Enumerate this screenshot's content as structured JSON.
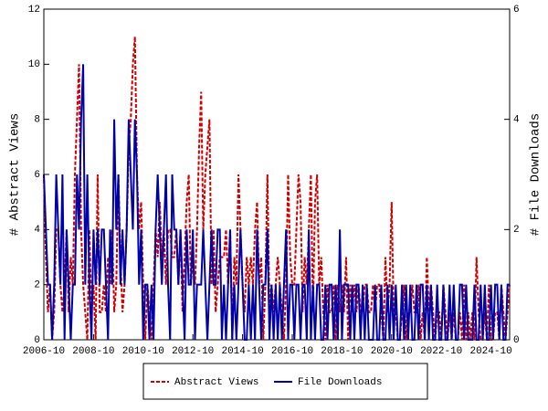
{
  "chart_data": {
    "type": "line",
    "ylabel": "# Abstract Views",
    "y2label": "# File Downloads",
    "x": [
      "2006-10",
      "2006-11",
      "2006-12",
      "2007-01",
      "2007-02",
      "2007-03",
      "2007-04",
      "2007-05",
      "2007-06",
      "2007-07",
      "2007-08",
      "2007-09",
      "2007-10",
      "2007-11",
      "2007-12",
      "2008-01",
      "2008-02",
      "2008-03",
      "2008-04",
      "2008-05",
      "2008-06",
      "2008-07",
      "2008-08",
      "2008-09",
      "2008-10",
      "2008-11",
      "2008-12",
      "2009-01",
      "2009-02",
      "2009-03",
      "2009-04",
      "2009-05",
      "2009-06",
      "2009-07",
      "2009-08",
      "2009-09",
      "2009-10",
      "2009-11",
      "2009-12",
      "2010-01",
      "2010-02",
      "2010-03",
      "2010-04",
      "2010-05",
      "2010-06",
      "2010-07",
      "2010-08",
      "2010-09",
      "2010-10",
      "2010-11",
      "2010-12",
      "2011-01",
      "2011-02",
      "2011-03",
      "2011-04",
      "2011-05",
      "2011-06",
      "2011-07",
      "2011-08",
      "2011-09",
      "2011-10",
      "2011-11",
      "2011-12",
      "2012-01",
      "2012-02",
      "2012-03",
      "2012-04",
      "2012-05",
      "2012-06",
      "2012-07",
      "2012-08",
      "2012-09",
      "2012-10",
      "2012-11",
      "2012-12",
      "2013-01",
      "2013-02",
      "2013-03",
      "2013-04",
      "2013-05",
      "2013-06",
      "2013-07",
      "2013-08",
      "2013-09",
      "2013-10",
      "2013-11",
      "2013-12",
      "2014-01",
      "2014-02",
      "2014-03",
      "2014-04",
      "2014-05",
      "2014-06",
      "2014-07",
      "2014-08",
      "2014-09",
      "2014-10",
      "2014-11",
      "2014-12",
      "2015-01",
      "2015-02",
      "2015-03",
      "2015-04",
      "2015-05",
      "2015-06",
      "2015-07",
      "2015-08",
      "2015-09",
      "2015-10",
      "2015-11",
      "2015-12",
      "2016-01",
      "2016-02",
      "2016-03",
      "2016-04",
      "2016-05",
      "2016-06",
      "2016-07",
      "2016-08",
      "2016-09",
      "2016-10",
      "2016-11",
      "2016-12",
      "2017-01",
      "2017-02",
      "2017-03",
      "2017-04",
      "2017-05",
      "2017-06",
      "2017-07",
      "2017-08",
      "2017-09",
      "2017-10",
      "2017-11",
      "2017-12",
      "2018-01",
      "2018-02",
      "2018-03",
      "2018-04",
      "2018-05",
      "2018-06",
      "2018-07",
      "2018-08",
      "2018-09",
      "2018-10",
      "2018-11",
      "2018-12",
      "2019-01",
      "2019-02",
      "2019-03",
      "2019-04",
      "2019-05",
      "2019-06",
      "2019-07",
      "2019-08",
      "2019-09",
      "2019-10",
      "2019-11",
      "2019-12",
      "2020-01",
      "2020-02",
      "2020-03",
      "2020-04",
      "2020-05",
      "2020-06",
      "2020-07",
      "2020-08",
      "2020-09",
      "2020-10",
      "2020-11",
      "2020-12",
      "2021-01",
      "2021-02",
      "2021-03",
      "2021-04",
      "2021-05",
      "2021-06",
      "2021-07",
      "2021-08",
      "2021-09",
      "2021-10",
      "2021-11",
      "2021-12",
      "2022-01",
      "2022-02",
      "2022-03",
      "2022-04",
      "2022-05",
      "2022-06",
      "2022-07",
      "2022-08",
      "2022-09",
      "2022-10",
      "2022-11",
      "2022-12",
      "2023-01",
      "2023-02",
      "2023-03",
      "2023-04",
      "2023-05",
      "2023-06",
      "2023-07",
      "2023-08",
      "2023-09",
      "2023-10",
      "2023-11",
      "2023-12",
      "2024-01",
      "2024-02",
      "2024-03",
      "2024-04",
      "2024-05",
      "2024-06",
      "2024-07",
      "2024-08",
      "2024-09",
      "2024-10",
      "2024-11",
      "2024-12",
      "2025-01",
      "2025-02",
      "2025-03",
      "2025-04",
      "2025-05",
      "2025-06",
      "2025-07"
    ],
    "xlim": [
      "2006-10",
      "2025-07"
    ],
    "xticks": [
      "2006-10",
      "2008-10",
      "2010-10",
      "2012-10",
      "2014-10",
      "2016-10",
      "2018-10",
      "2020-10",
      "2022-10",
      "2024-10"
    ],
    "ylim": [
      0,
      12
    ],
    "yticks": [
      0,
      2,
      4,
      6,
      8,
      10,
      12
    ],
    "y2lim": [
      0,
      6
    ],
    "y2ticks": [
      0,
      2,
      4,
      6
    ],
    "legend": "bottom",
    "series": [
      {
        "name": "Abstract Views",
        "color": "#cc0000",
        "dashed": true,
        "values": [
          6,
          3,
          1,
          2,
          0,
          1,
          4,
          4,
          2,
          1,
          2,
          4,
          1,
          3,
          2,
          6,
          8,
          10,
          4,
          2,
          1,
          0,
          4,
          1,
          2,
          0,
          6,
          1,
          1,
          2,
          1,
          3,
          2,
          4,
          1,
          2,
          6,
          3,
          1,
          2,
          4,
          7,
          8,
          10,
          11,
          6,
          4,
          5,
          2,
          0,
          2,
          1,
          0,
          2,
          4,
          3,
          5,
          3,
          4,
          2,
          4,
          4,
          3,
          3,
          4,
          2,
          4,
          1,
          3,
          5,
          6,
          2,
          3,
          2,
          4,
          7,
          9,
          4,
          6,
          7,
          8,
          2,
          4,
          1,
          2,
          3,
          3,
          3,
          4,
          2,
          4,
          0,
          3,
          2,
          6,
          4,
          2,
          1,
          3,
          2,
          3,
          2,
          4,
          5,
          2,
          3,
          0,
          2,
          6,
          1,
          2,
          1,
          2,
          3,
          2,
          1,
          0,
          2,
          6,
          3,
          2,
          2,
          4,
          6,
          5,
          1,
          3,
          2,
          4,
          6,
          1,
          5,
          6,
          2,
          3,
          1,
          0,
          2,
          1,
          1,
          2,
          0,
          2,
          1,
          2,
          1,
          3,
          0,
          2,
          1,
          2,
          1,
          2,
          1,
          1,
          2,
          2,
          1,
          1,
          2,
          1,
          2,
          2,
          1,
          0,
          3,
          1,
          2,
          5,
          1,
          1,
          0,
          0,
          1,
          2,
          0,
          1,
          1,
          2,
          1,
          1,
          2,
          0,
          1,
          0,
          3,
          1,
          2,
          1,
          0,
          1,
          1,
          0,
          2,
          1,
          0,
          1,
          0,
          1,
          0,
          0,
          1,
          0,
          2,
          0,
          1,
          0,
          1,
          0,
          3,
          1,
          0,
          0,
          1,
          0,
          2,
          0,
          0,
          1,
          1,
          0,
          2,
          1,
          0,
          1,
          2
        ]
      },
      {
        "name": "File Downloads",
        "color": "#0000aa",
        "axis": "y2",
        "values": [
          3,
          2,
          1,
          1,
          0,
          1,
          3,
          2,
          1,
          3,
          0,
          2,
          1,
          0,
          1,
          1,
          3,
          2,
          4,
          5,
          1,
          3,
          1,
          0,
          2,
          1,
          2,
          1,
          2,
          2,
          1,
          0,
          2,
          1,
          4,
          2,
          3,
          1,
          2,
          1,
          2,
          4,
          3,
          2,
          4,
          3,
          1,
          2,
          0,
          1,
          1,
          0,
          1,
          0,
          2,
          3,
          2,
          1,
          2,
          3,
          1,
          0,
          3,
          2,
          2,
          1,
          2,
          1,
          0,
          2,
          1,
          1,
          2,
          0,
          1,
          1,
          1,
          2,
          1,
          0,
          1,
          2,
          1,
          1,
          2,
          2,
          0,
          1,
          0,
          1,
          2,
          0,
          1,
          0,
          1,
          2,
          1,
          0,
          0,
          1,
          0,
          1,
          0,
          2,
          1,
          0,
          1,
          1,
          2,
          0,
          1,
          0,
          1,
          0,
          1,
          0,
          1,
          2,
          0,
          1,
          1,
          0,
          1,
          1,
          0,
          1,
          1,
          0,
          2,
          0,
          1,
          0,
          1,
          1,
          0,
          0,
          1,
          0,
          1,
          1,
          0,
          1,
          0,
          2,
          0,
          1,
          1,
          1,
          0,
          1,
          0,
          1,
          1,
          0,
          1,
          0,
          1,
          0,
          0,
          0,
          1,
          0,
          0,
          1,
          0,
          0,
          1,
          0,
          1,
          0,
          1,
          0,
          0,
          1,
          0,
          1,
          0,
          1,
          0,
          0,
          1,
          0,
          1,
          1,
          0,
          1,
          0,
          1,
          0,
          0,
          1,
          0,
          0,
          1,
          0,
          0,
          1,
          0,
          1,
          0,
          0,
          1,
          1,
          0,
          1,
          0,
          0,
          0,
          1,
          0,
          0,
          1,
          0,
          1,
          0,
          0,
          1,
          0,
          1,
          1,
          0,
          1,
          0,
          0,
          1,
          1
        ]
      }
    ]
  }
}
